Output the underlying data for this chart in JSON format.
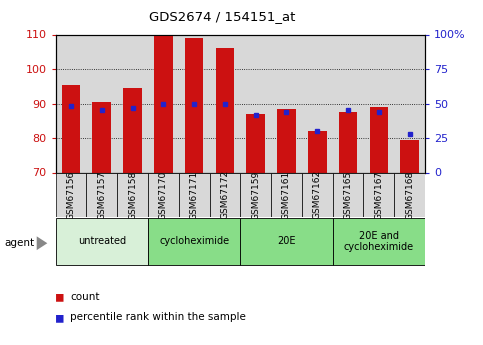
{
  "title": "GDS2674 / 154151_at",
  "samples": [
    "GSM67156",
    "GSM67157",
    "GSM67158",
    "GSM67170",
    "GSM67171",
    "GSM67172",
    "GSM67159",
    "GSM67161",
    "GSM67162",
    "GSM67165",
    "GSM67167",
    "GSM67168"
  ],
  "counts": [
    95.5,
    90.5,
    94.5,
    110,
    109,
    106,
    87,
    88.5,
    82,
    87.5,
    89,
    79.5
  ],
  "percentile_ranks": [
    48,
    45,
    47,
    50,
    50,
    50,
    42,
    44,
    30,
    45,
    44,
    28
  ],
  "ylim_left": [
    70,
    110
  ],
  "ylim_right": [
    0,
    100
  ],
  "yticks_left": [
    70,
    80,
    90,
    100,
    110
  ],
  "yticks_right": [
    0,
    25,
    50,
    75,
    100
  ],
  "bar_color": "#cc1111",
  "dot_color": "#2222cc",
  "groups": [
    {
      "label": "untreated",
      "start": 0,
      "end": 3,
      "color": "#d8f0d8"
    },
    {
      "label": "cycloheximide",
      "start": 3,
      "end": 6,
      "color": "#88dd88"
    },
    {
      "label": "20E",
      "start": 6,
      "end": 9,
      "color": "#88dd88"
    },
    {
      "label": "20E and\ncycloheximide",
      "start": 9,
      "end": 12,
      "color": "#88dd88"
    }
  ],
  "agent_label": "agent",
  "legend_count_label": "count",
  "legend_percentile_label": "percentile rank within the sample",
  "grid_values": [
    80,
    90,
    100
  ]
}
